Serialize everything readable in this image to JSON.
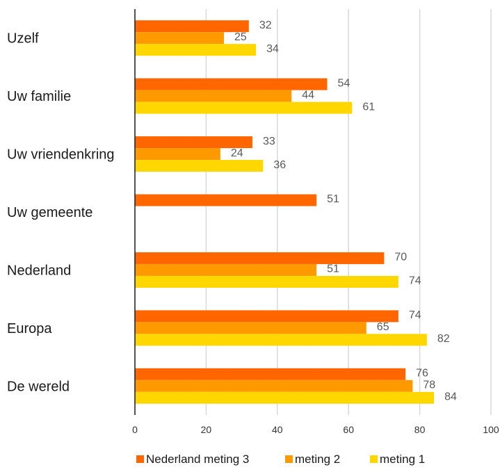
{
  "chart_data": {
    "type": "bar",
    "orientation": "horizontal",
    "title": "",
    "xlabel": "",
    "ylabel": "",
    "categories": [
      "Uzelf",
      "Uw familie",
      "Uw vriendenkring",
      "Uw gemeente",
      "Nederland",
      "Europa",
      "De wereld"
    ],
    "series": [
      {
        "name": "Nederland meting 3",
        "color": "#FF6600",
        "values": [
          32,
          54,
          33,
          51,
          70,
          74,
          76
        ]
      },
      {
        "name": "meting 2",
        "color": "#FF9900",
        "values": [
          25,
          44,
          24,
          null,
          51,
          65,
          78
        ]
      },
      {
        "name": "meting 1",
        "color": "#FFD700",
        "values": [
          34,
          61,
          36,
          null,
          74,
          82,
          84
        ]
      }
    ],
    "xlim": [
      0,
      100
    ],
    "xticks": [
      0,
      20,
      40,
      60,
      80,
      100
    ],
    "grid": true,
    "legend_position": "bottom"
  }
}
